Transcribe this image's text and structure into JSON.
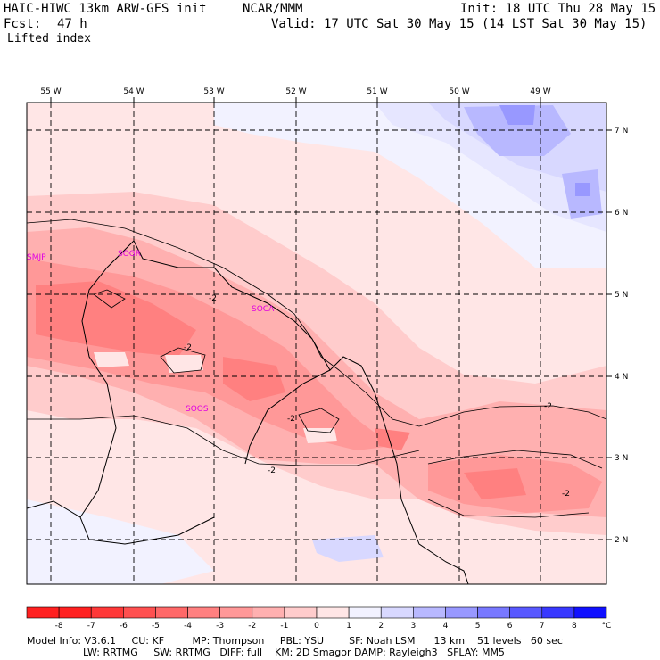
{
  "header": {
    "model": "HAIC-HIWC 13km ARW-GFS init",
    "org": "NCAR/MMM",
    "init": "Init: 18 UTC Thu 28 May 15",
    "fcst_label": "Fcst:",
    "fcst_value": "47 h",
    "valid": "Valid: 17 UTC Sat 30 May 15 (14 LST Sat 30 May 15)",
    "field": "Lifted index"
  },
  "map": {
    "lon_labels": [
      "55 W",
      "54 W",
      "53 W",
      "52 W",
      "51 W",
      "50 W",
      "49 W"
    ],
    "lat_labels": [
      "7 N",
      "6 N",
      "5 N",
      "4 N",
      "3 N",
      "2 N"
    ],
    "stations": [
      "SMJP",
      "SOGR",
      "SOCA",
      "SOOS"
    ],
    "contour_labels": [
      "-2",
      "-2",
      "-2",
      "-2",
      "-2",
      "-2"
    ]
  },
  "colorbar": {
    "ticks": [
      "-8",
      "-7",
      "-6",
      "-5",
      "-4",
      "-3",
      "-2",
      "-1",
      "0",
      "1",
      "2",
      "3",
      "4",
      "5",
      "6",
      "7",
      "8"
    ],
    "unit": "°C",
    "colors": [
      "#ff2020",
      "#ff3838",
      "#ff5050",
      "#ff6868",
      "#ff8080",
      "#ff9898",
      "#ffb0b0",
      "#ffcccc",
      "#ffe6e6",
      "#f2f2ff",
      "#d8d8ff",
      "#b8b8ff",
      "#9898ff",
      "#7878ff",
      "#5858ff",
      "#3838ff",
      "#1010ff"
    ]
  },
  "footer": {
    "line1": "Model Info: V3.6.1     CU: KF         MP: Thompson     PBL: YSU        SF: Noah LSM      13 km    51 levels   60 sec",
    "line2": "                  LW: RRTMG     SW: RRTMG   DIFF: full    KM: 2D Smagor DAMP: Rayleigh3   SFLAY: MM5"
  }
}
